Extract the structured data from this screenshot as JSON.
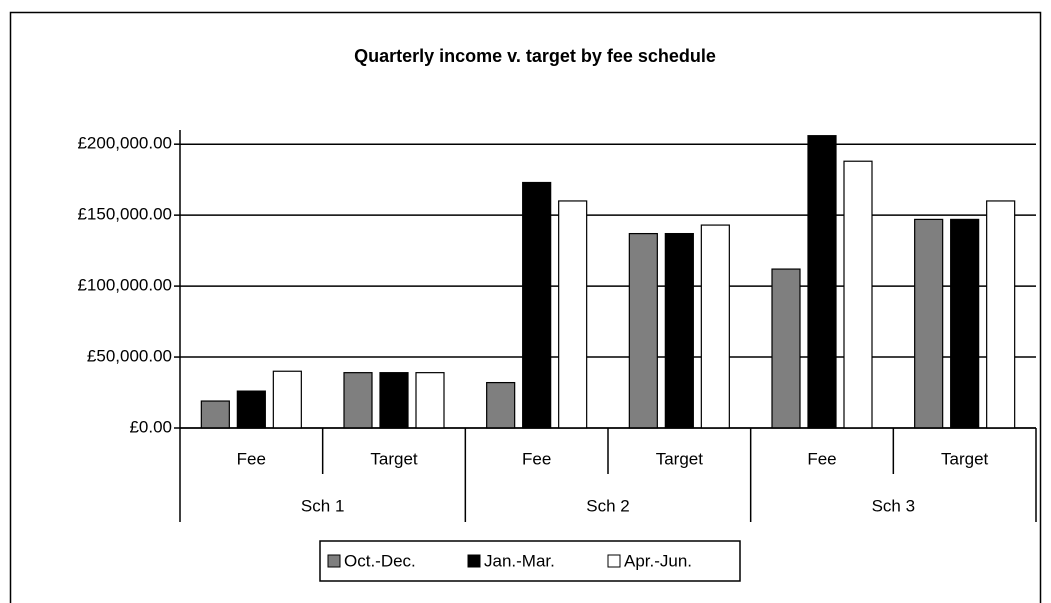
{
  "chart_data": {
    "type": "bar",
    "title": "Quarterly income v. target by fee schedule",
    "categories": [
      "Fee",
      "Target",
      "Fee",
      "Target",
      "Fee",
      "Target"
    ],
    "groups": [
      "Sch 1",
      "Sch 2",
      "Sch 3"
    ],
    "series": [
      {
        "name": "Oct.-Dec.",
        "color": "#7f7f7f",
        "values": [
          19000,
          39000,
          32000,
          137000,
          112000,
          147000
        ]
      },
      {
        "name": "Jan.-Mar.",
        "color": "#000000",
        "values": [
          26000,
          39000,
          173000,
          137000,
          206000,
          147000
        ]
      },
      {
        "name": "Apr.-Jun.",
        "color": "#ffffff",
        "values": [
          40000,
          39000,
          160000,
          143000,
          188000,
          160000
        ]
      }
    ],
    "ylim": [
      0,
      210000
    ],
    "yticks": [
      {
        "value": 0,
        "label": "£0.00"
      },
      {
        "value": 50000,
        "label": "£50,000.00"
      },
      {
        "value": 100000,
        "label": "£100,000.00"
      },
      {
        "value": 150000,
        "label": "£150,000.00"
      },
      {
        "value": 200000,
        "label": "£200,000.00"
      }
    ],
    "grid": true,
    "legend": "bottom"
  }
}
